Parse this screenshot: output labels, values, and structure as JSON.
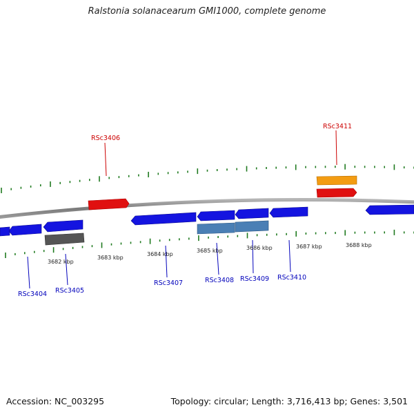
{
  "title": "Ralstonia solanacearum GMI1000, complete genome",
  "footer": {
    "accession": "Accession: NC_003295",
    "summary": "Topology: circular; Length: 3,716,413 bp; Genes: 3,501"
  },
  "colors": {
    "backbone": "#8a8a8a",
    "tick": "#1f7a1f",
    "forward_gene": "#e01010",
    "reverse_gene": "#1414e0",
    "rna_or_other": "#f39c12",
    "pseudo_gray": "#555555",
    "light_blue": "#4a7fb5",
    "label_forward": "#cc0000",
    "label_reverse": "#0000bb"
  },
  "kbp_labels": [
    "3682 kbp",
    "3683 kbp",
    "3684 kbp",
    "3685 kbp",
    "3686 kbp",
    "3687 kbp",
    "3688 kbp"
  ],
  "gene_labels_forward": [
    "RSc3406",
    "RSc3411"
  ],
  "gene_labels_reverse": [
    "RSc3404",
    "RSc3405",
    "RSc3407",
    "RSc3408",
    "RSc3409",
    "RSc3410"
  ]
}
